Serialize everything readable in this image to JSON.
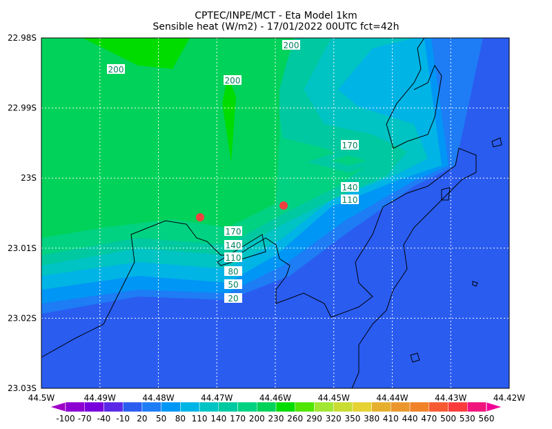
{
  "title": [
    "CPTEC/INPE/MCT -  Eta Model 1km",
    "Sensible heat (W/m2) - 17/01/2022 00UTC fct=42h"
  ],
  "x_ticks": [
    "44.5W",
    "44.49W",
    "44.48W",
    "44.47W",
    "44.46W",
    "44.45W",
    "44.44W",
    "44.43W",
    "44.42W"
  ],
  "y_ticks": [
    "22.98S",
    "22.99S",
    "23S",
    "23.01S",
    "23.02S",
    "23.03S"
  ],
  "contour_labels": [
    200,
    200,
    200,
    170,
    140,
    110,
    170,
    140,
    110,
    80,
    50,
    20
  ],
  "colorbar": {
    "labels": [
      -100,
      -70,
      -40,
      -10,
      20,
      50,
      80,
      110,
      140,
      170,
      200,
      230,
      260,
      290,
      320,
      350,
      380,
      410,
      440,
      470,
      500,
      530,
      560
    ],
    "colors": [
      "#a000c8",
      "#8c00d2",
      "#7800dc",
      "#5a28e6",
      "#2a5cf0",
      "#1e7cf5",
      "#0096f5",
      "#00b4e6",
      "#00c3c3",
      "#00c8a0",
      "#00d282",
      "#00d25a",
      "#00dc00",
      "#50e600",
      "#a0e632",
      "#c8dc32",
      "#e6d232",
      "#e6af2d",
      "#eb962d",
      "#f08228",
      "#f55a32",
      "#fa3c3c",
      "#f0147d",
      "#f00096"
    ]
  }
}
